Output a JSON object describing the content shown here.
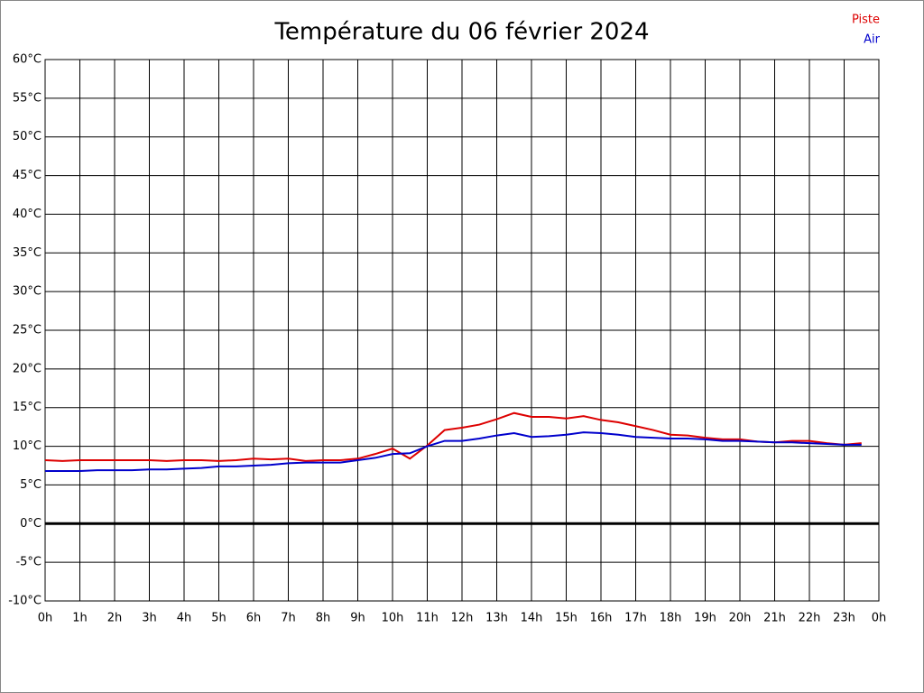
{
  "chart_data": {
    "type": "line",
    "title": "Température du 06 février 2024",
    "x": [
      0,
      0.5,
      1,
      1.5,
      2,
      2.5,
      3,
      3.5,
      4,
      4.5,
      5,
      5.5,
      6,
      6.5,
      7,
      7.5,
      8,
      8.5,
      9,
      9.5,
      10,
      10.5,
      11,
      11.5,
      12,
      12.5,
      13,
      13.5,
      14,
      14.5,
      15,
      15.5,
      16,
      16.5,
      17,
      17.5,
      18,
      18.5,
      19,
      19.5,
      20,
      20.5,
      21,
      21.5,
      22,
      22.5,
      23,
      23.5
    ],
    "series": [
      {
        "name": "Piste",
        "color": "#dd0000",
        "values": [
          8.2,
          8.1,
          8.2,
          8.2,
          8.2,
          8.2,
          8.2,
          8.1,
          8.2,
          8.2,
          8.1,
          8.2,
          8.4,
          8.3,
          8.4,
          8.1,
          8.2,
          8.2,
          8.4,
          9.0,
          9.7,
          8.4,
          10.1,
          12.1,
          12.4,
          12.8,
          13.5,
          14.3,
          13.8,
          13.8,
          13.6,
          13.9,
          13.4,
          13.1,
          12.6,
          12.1,
          11.5,
          11.4,
          11.1,
          10.9,
          10.9,
          10.6,
          10.5,
          10.7,
          10.7,
          10.4,
          10.2,
          10.4
        ]
      },
      {
        "name": "Air",
        "color": "#0000cc",
        "values": [
          6.8,
          6.8,
          6.8,
          6.9,
          6.9,
          6.9,
          7.0,
          7.0,
          7.1,
          7.2,
          7.4,
          7.4,
          7.5,
          7.6,
          7.8,
          7.9,
          7.9,
          7.9,
          8.2,
          8.5,
          9.0,
          9.1,
          10.0,
          10.7,
          10.7,
          11.0,
          11.4,
          11.7,
          11.2,
          11.3,
          11.5,
          11.8,
          11.7,
          11.5,
          11.2,
          11.1,
          11.0,
          11.0,
          10.9,
          10.7,
          10.7,
          10.6,
          10.5,
          10.5,
          10.4,
          10.3,
          10.2,
          10.2
        ]
      }
    ],
    "xlim": [
      0,
      24
    ],
    "xticks": [
      {
        "value": 0,
        "label": "0h"
      },
      {
        "value": 1,
        "label": "1h"
      },
      {
        "value": 2,
        "label": "2h"
      },
      {
        "value": 3,
        "label": "3h"
      },
      {
        "value": 4,
        "label": "4h"
      },
      {
        "value": 5,
        "label": "5h"
      },
      {
        "value": 6,
        "label": "6h"
      },
      {
        "value": 7,
        "label": "7h"
      },
      {
        "value": 8,
        "label": "8h"
      },
      {
        "value": 9,
        "label": "9h"
      },
      {
        "value": 10,
        "label": "10h"
      },
      {
        "value": 11,
        "label": "11h"
      },
      {
        "value": 12,
        "label": "12h"
      },
      {
        "value": 13,
        "label": "13h"
      },
      {
        "value": 14,
        "label": "14h"
      },
      {
        "value": 15,
        "label": "15h"
      },
      {
        "value": 16,
        "label": "16h"
      },
      {
        "value": 17,
        "label": "17h"
      },
      {
        "value": 18,
        "label": "18h"
      },
      {
        "value": 19,
        "label": "19h"
      },
      {
        "value": 20,
        "label": "20h"
      },
      {
        "value": 21,
        "label": "21h"
      },
      {
        "value": 22,
        "label": "22h"
      },
      {
        "value": 23,
        "label": "23h"
      },
      {
        "value": 24,
        "label": "0h"
      }
    ],
    "ylim": [
      -10,
      60
    ],
    "yticks": [
      {
        "value": -10,
        "label": "-10°C"
      },
      {
        "value": -5,
        "label": "-5°C"
      },
      {
        "value": 0,
        "label": "0°C"
      },
      {
        "value": 5,
        "label": "5°C"
      },
      {
        "value": 10,
        "label": "10°C"
      },
      {
        "value": 15,
        "label": "15°C"
      },
      {
        "value": 20,
        "label": "20°C"
      },
      {
        "value": 25,
        "label": "25°C"
      },
      {
        "value": 30,
        "label": "30°C"
      },
      {
        "value": 35,
        "label": "35°C"
      },
      {
        "value": 40,
        "label": "40°C"
      },
      {
        "value": 45,
        "label": "45°C"
      },
      {
        "value": 50,
        "label": "50°C"
      },
      {
        "value": 55,
        "label": "55°C"
      },
      {
        "value": 60,
        "label": "60°C"
      }
    ],
    "grid": true,
    "legend": "top-right"
  }
}
